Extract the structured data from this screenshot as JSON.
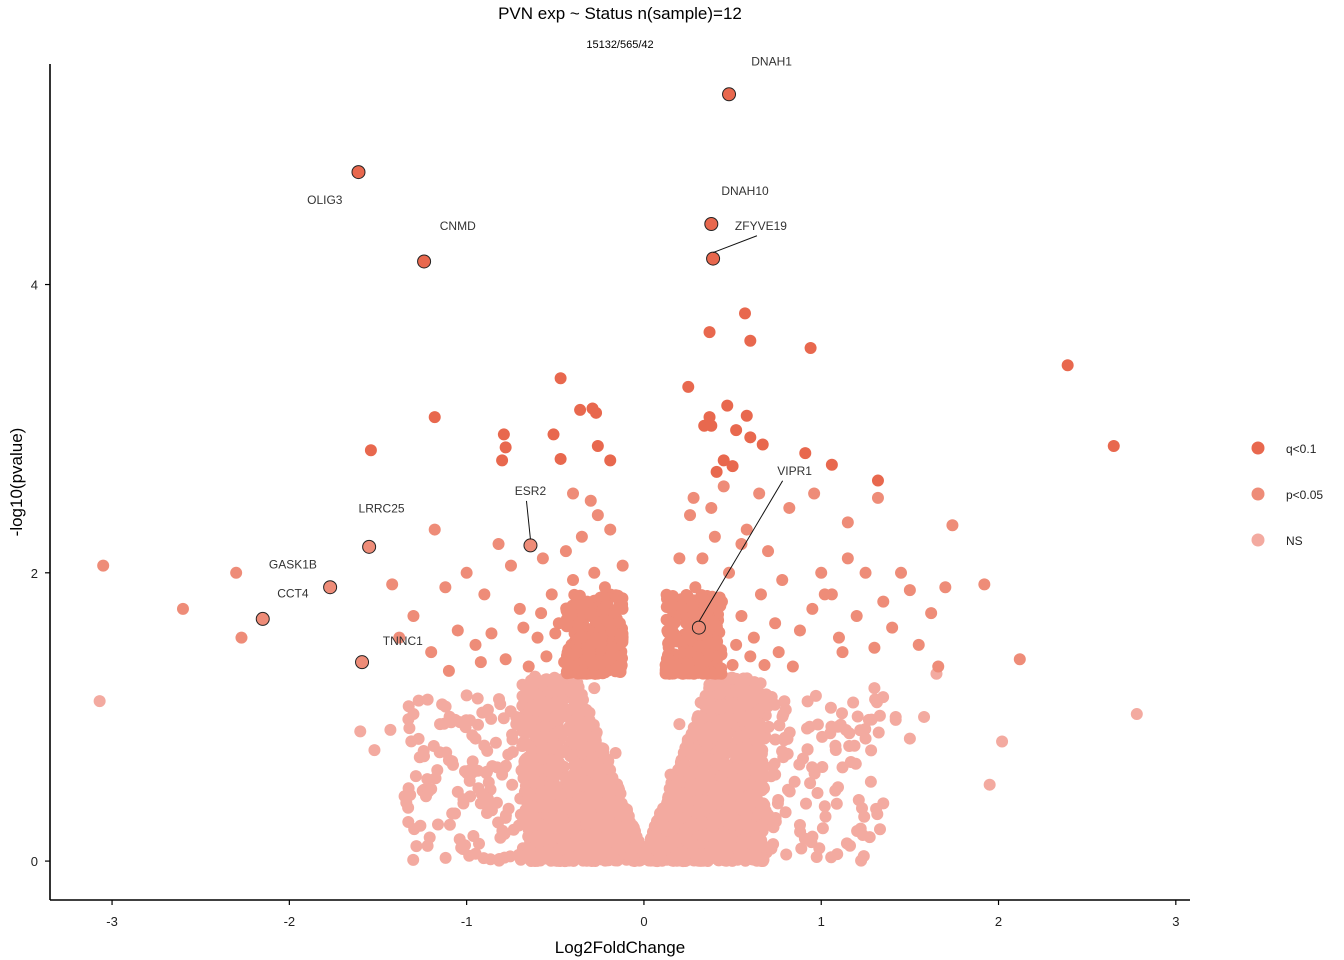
{
  "chart_data": {
    "type": "scatter",
    "title": "PVN exp ~ Status n(sample)=12",
    "subtitle": "15132/565/42",
    "xlabel": "Log2FoldChange",
    "ylabel": "-log10(pvalue)",
    "xlim": [
      -3.35,
      3.08
    ],
    "ylim": [
      -0.27,
      5.53
    ],
    "x_ticks": [
      -3,
      -2,
      -1,
      0,
      1,
      2,
      3
    ],
    "y_ticks": [
      0,
      2,
      4
    ],
    "grid": false,
    "legend_position": "right",
    "colors": {
      "q": "#E8684E",
      "p": "#EE8C78",
      "ns": "#F3AAA0"
    },
    "legend": [
      {
        "key": "q",
        "label": "q<0.1"
      },
      {
        "key": "p",
        "label": "p<0.05"
      },
      {
        "key": "ns",
        "label": "NS"
      }
    ],
    "series_q": [
      [
        0.48,
        5.32
      ],
      [
        -1.61,
        4.78
      ],
      [
        0.38,
        4.42
      ],
      [
        -1.24,
        4.16
      ],
      [
        0.39,
        4.18
      ],
      [
        0.57,
        3.8
      ],
      [
        0.37,
        3.67
      ],
      [
        0.6,
        3.61
      ],
      [
        0.94,
        3.56
      ],
      [
        2.39,
        3.44
      ],
      [
        -0.47,
        3.35
      ],
      [
        0.25,
        3.29
      ],
      [
        0.47,
        3.16
      ],
      [
        -0.36,
        3.13
      ],
      [
        -0.29,
        3.14
      ],
      [
        -0.27,
        3.11
      ],
      [
        0.37,
        3.08
      ],
      [
        0.58,
        3.09
      ],
      [
        -1.18,
        3.08
      ],
      [
        0.34,
        3.02
      ],
      [
        0.38,
        3.02
      ],
      [
        -0.79,
        2.96
      ],
      [
        -0.51,
        2.96
      ],
      [
        0.52,
        2.99
      ],
      [
        0.6,
        2.94
      ],
      [
        0.67,
        2.89
      ],
      [
        -0.78,
        2.87
      ],
      [
        -0.26,
        2.88
      ],
      [
        -1.54,
        2.85
      ],
      [
        0.91,
        2.83
      ],
      [
        2.65,
        2.88
      ],
      [
        -0.8,
        2.78
      ],
      [
        -0.47,
        2.79
      ],
      [
        -0.19,
        2.78
      ],
      [
        0.45,
        2.78
      ],
      [
        0.5,
        2.74
      ],
      [
        1.06,
        2.75
      ],
      [
        0.41,
        2.7
      ],
      [
        1.32,
        2.64
      ]
    ],
    "series_p": [
      [
        -0.64,
        2.19
      ],
      [
        -1.55,
        2.18
      ],
      [
        -1.77,
        1.9
      ],
      [
        -2.15,
        1.68
      ],
      [
        0.31,
        1.62
      ],
      [
        -0.57,
        2.1
      ],
      [
        -0.52,
        1.85
      ],
      [
        -0.44,
        2.15
      ],
      [
        -0.4,
        1.95
      ],
      [
        -0.35,
        2.25
      ],
      [
        -0.32,
        1.8
      ],
      [
        -0.28,
        2.0
      ],
      [
        -0.26,
        2.4
      ],
      [
        -0.22,
        1.9
      ],
      [
        -0.19,
        2.3
      ],
      [
        -0.15,
        1.75
      ],
      [
        -0.12,
        2.05
      ],
      [
        -0.48,
        1.65
      ],
      [
        -0.6,
        1.55
      ],
      [
        -0.7,
        1.75
      ],
      [
        -0.75,
        2.05
      ],
      [
        -0.82,
        2.2
      ],
      [
        -0.9,
        1.85
      ],
      [
        -0.95,
        1.5
      ],
      [
        -1.0,
        2.0
      ],
      [
        -1.05,
        1.6
      ],
      [
        -1.12,
        1.9
      ],
      [
        -1.18,
        2.3
      ],
      [
        -1.2,
        1.45
      ],
      [
        -1.3,
        1.7
      ],
      [
        -1.42,
        1.92
      ],
      [
        -1.38,
        1.55
      ],
      [
        -2.3,
        2.0
      ],
      [
        -2.6,
        1.75
      ],
      [
        -2.27,
        1.55
      ],
      [
        -3.05,
        2.05
      ],
      [
        -0.78,
        1.4
      ],
      [
        -0.65,
        1.35
      ],
      [
        -0.55,
        1.42
      ],
      [
        -0.45,
        1.38
      ],
      [
        -0.38,
        1.45
      ],
      [
        -0.3,
        1.5
      ],
      [
        -0.25,
        1.6
      ],
      [
        -0.2,
        1.4
      ],
      [
        -0.14,
        1.35
      ],
      [
        -0.42,
        1.7
      ],
      [
        -0.36,
        1.62
      ],
      [
        -0.3,
        1.72
      ],
      [
        -0.24,
        1.55
      ],
      [
        -0.18,
        1.48
      ],
      [
        -0.5,
        1.58
      ],
      [
        -0.58,
        1.72
      ],
      [
        -0.68,
        1.62
      ],
      [
        -0.86,
        1.58
      ],
      [
        -0.92,
        1.38
      ],
      [
        -1.1,
        1.32
      ],
      [
        -0.35,
        1.32
      ],
      [
        -0.28,
        1.36
      ],
      [
        -0.4,
        2.55
      ],
      [
        -0.3,
        2.5
      ],
      [
        0.14,
        1.4
      ],
      [
        0.18,
        1.55
      ],
      [
        0.22,
        1.75
      ],
      [
        0.26,
        1.45
      ],
      [
        0.29,
        1.9
      ],
      [
        0.33,
        2.1
      ],
      [
        0.36,
        1.6
      ],
      [
        0.4,
        2.25
      ],
      [
        0.44,
        1.8
      ],
      [
        0.48,
        2.0
      ],
      [
        0.52,
        1.5
      ],
      [
        0.55,
        1.7
      ],
      [
        0.58,
        2.3
      ],
      [
        0.62,
        1.55
      ],
      [
        0.66,
        1.85
      ],
      [
        0.7,
        2.15
      ],
      [
        0.74,
        1.65
      ],
      [
        0.78,
        1.95
      ],
      [
        0.82,
        2.45
      ],
      [
        0.88,
        1.6
      ],
      [
        0.95,
        1.75
      ],
      [
        1.0,
        2.0
      ],
      [
        1.06,
        1.85
      ],
      [
        1.1,
        1.55
      ],
      [
        1.15,
        2.1
      ],
      [
        1.2,
        1.7
      ],
      [
        1.25,
        2.0
      ],
      [
        1.3,
        1.48
      ],
      [
        1.35,
        1.8
      ],
      [
        1.4,
        1.62
      ],
      [
        1.45,
        2.0
      ],
      [
        1.5,
        1.88
      ],
      [
        1.55,
        1.5
      ],
      [
        1.62,
        1.72
      ],
      [
        1.7,
        1.9
      ],
      [
        1.74,
        2.33
      ],
      [
        1.92,
        1.92
      ],
      [
        1.66,
        1.35
      ],
      [
        2.12,
        1.4
      ],
      [
        1.32,
        2.52
      ],
      [
        0.96,
        2.55
      ],
      [
        1.15,
        2.35
      ],
      [
        0.65,
        2.55
      ],
      [
        0.55,
        2.2
      ],
      [
        0.26,
        2.4
      ],
      [
        0.2,
        2.1
      ],
      [
        0.16,
        1.65
      ],
      [
        0.24,
        1.35
      ],
      [
        0.32,
        1.38
      ],
      [
        0.42,
        1.42
      ],
      [
        0.5,
        1.36
      ],
      [
        0.6,
        1.42
      ],
      [
        0.68,
        1.36
      ],
      [
        0.76,
        1.45
      ],
      [
        0.84,
        1.35
      ],
      [
        0.45,
        2.6
      ],
      [
        0.38,
        2.45
      ],
      [
        0.28,
        2.52
      ],
      [
        1.02,
        1.85
      ],
      [
        1.12,
        1.45
      ]
    ],
    "series_ns": [
      [
        -3.07,
        1.11
      ],
      [
        2.78,
        1.02
      ],
      [
        2.02,
        0.83
      ],
      [
        1.95,
        0.53
      ],
      [
        -1.33,
        0.37
      ],
      [
        -1.52,
        0.77
      ],
      [
        -1.6,
        0.9
      ],
      [
        -1.43,
        0.91
      ],
      [
        -1.22,
        1.12
      ],
      [
        -1.15,
        0.95
      ],
      [
        -1.1,
        0.7
      ],
      [
        -1.05,
        0.48
      ],
      [
        -1.2,
        0.5
      ],
      [
        -1.3,
        1.02
      ],
      [
        1.12,
        0.65
      ],
      [
        1.25,
        0.85
      ],
      [
        1.35,
        0.4
      ],
      [
        1.42,
        1.0
      ],
      [
        1.5,
        0.85
      ],
      [
        1.58,
        1.0
      ],
      [
        1.65,
        1.3
      ],
      [
        1.42,
        0.98
      ],
      [
        1.3,
        1.2
      ],
      [
        1.02,
        0.38
      ],
      [
        0.85,
        0.55
      ],
      [
        0.92,
        0.92
      ],
      [
        1.18,
        1.1
      ],
      [
        -0.95,
        0.85
      ],
      [
        -0.88,
        1.05
      ],
      [
        -0.8,
        0.6
      ],
      [
        -0.72,
        0.95
      ],
      [
        -0.65,
        0.45
      ],
      [
        -0.6,
        1.15
      ],
      [
        -0.52,
        0.7
      ],
      [
        -0.46,
        0.3
      ],
      [
        -0.4,
        0.9
      ],
      [
        -0.34,
        0.55
      ],
      [
        -0.28,
        1.2
      ],
      [
        -0.22,
        0.4
      ],
      [
        -0.16,
        0.75
      ],
      [
        -0.1,
        0.2
      ],
      [
        -0.05,
        0.1
      ],
      [
        0.0,
        0.05
      ],
      [
        0.05,
        0.12
      ],
      [
        0.1,
        0.25
      ],
      [
        0.15,
        0.6
      ],
      [
        0.2,
        0.95
      ],
      [
        0.26,
        0.35
      ],
      [
        0.32,
        1.1
      ],
      [
        0.38,
        0.5
      ],
      [
        0.44,
        0.8
      ],
      [
        0.5,
        0.25
      ],
      [
        0.56,
        1.0
      ],
      [
        0.62,
        0.45
      ],
      [
        0.68,
        0.85
      ],
      [
        0.74,
        0.6
      ],
      [
        0.8,
        1.05
      ],
      [
        -0.92,
        0.4
      ],
      [
        -0.78,
        0.3
      ],
      [
        0.72,
        0.3
      ],
      [
        0.88,
        0.25
      ],
      [
        -1.35,
        0.45
      ],
      [
        1.28,
        0.55
      ],
      [
        1.08,
        0.8
      ],
      [
        -1.0,
        1.15
      ]
    ],
    "labels": [
      {
        "gene": "DNAH1",
        "x": 0.48,
        "y": 5.32,
        "tx": 0.72,
        "ty": 5.52,
        "line": false
      },
      {
        "gene": "OLIG3",
        "x": -1.61,
        "y": 4.78,
        "tx": -1.8,
        "ty": 4.56,
        "line": false
      },
      {
        "gene": "DNAH10",
        "x": 0.38,
        "y": 4.42,
        "tx": 0.57,
        "ty": 4.62,
        "line": false
      },
      {
        "gene": "CNMD",
        "x": -1.24,
        "y": 4.16,
        "tx": -1.05,
        "ty": 4.38,
        "line": false
      },
      {
        "gene": "ZFYVE19",
        "x": 0.39,
        "y": 4.18,
        "tx": 0.66,
        "ty": 4.38,
        "line": true
      },
      {
        "gene": "VIPR1",
        "x": 0.31,
        "y": 1.62,
        "tx": 0.85,
        "ty": 2.68,
        "line": true
      },
      {
        "gene": "ESR2",
        "x": -0.64,
        "y": 2.19,
        "tx": -0.64,
        "ty": 2.54,
        "line": true
      },
      {
        "gene": "LRRC25",
        "x": -1.55,
        "y": 2.18,
        "tx": -1.48,
        "ty": 2.42,
        "line": false
      },
      {
        "gene": "GASK1B",
        "x": -1.77,
        "y": 1.9,
        "tx": -1.98,
        "ty": 2.03,
        "line": false
      },
      {
        "gene": "CCT4",
        "x": -2.15,
        "y": 1.68,
        "tx": -1.98,
        "ty": 1.83,
        "line": false
      },
      {
        "gene": "TNNC1",
        "x": -1.59,
        "y": 1.38,
        "tx": -1.36,
        "ty": 1.5,
        "line": false
      }
    ]
  }
}
